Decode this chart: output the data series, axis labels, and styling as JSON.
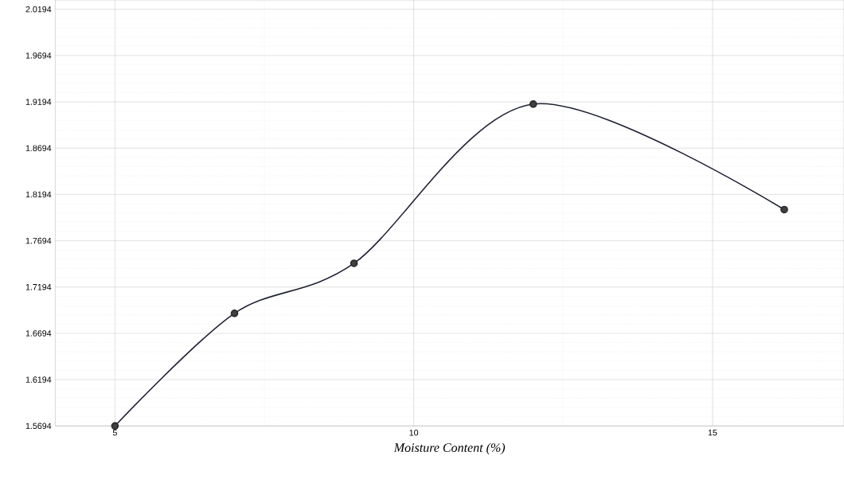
{
  "chart_data": {
    "type": "line",
    "xlabel": "Moisture Content (%)",
    "x": [
      5,
      7,
      9,
      12,
      16.2
    ],
    "series": [
      {
        "color": "#1f2233",
        "values": [
          1.5694,
          1.691,
          1.745,
          1.917,
          1.803
        ]
      }
    ],
    "xlim": [
      4,
      17.2
    ],
    "ylim": [
      1.5694,
      2.0294
    ],
    "xticks": [
      5,
      10,
      15
    ],
    "yticks": [
      1.5694,
      1.6194,
      1.6694,
      1.7194,
      1.7694,
      1.8194,
      1.8694,
      1.9194,
      1.9694,
      2.0194
    ],
    "grid": true,
    "marker": "circle",
    "line_style": "solid"
  }
}
